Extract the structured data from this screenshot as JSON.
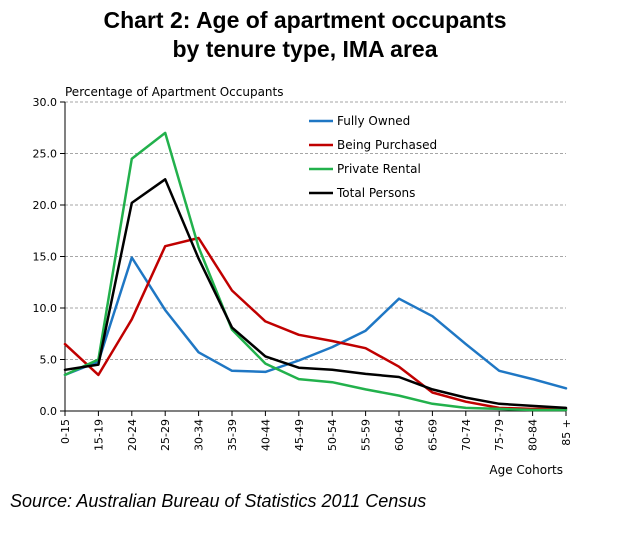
{
  "title_line1": "Chart 2: Age of apartment occupants",
  "title_line2": "by tenure type, IMA area",
  "source": "Source: Australian Bureau of Statistics 2011 Census",
  "chart_data": {
    "type": "line",
    "ylabel": "Percentage of Apartment Occupants",
    "xlabel": "Age Cohorts",
    "ylim": [
      0,
      30
    ],
    "yticks": [
      "0.0",
      "5.0",
      "10.0",
      "15.0",
      "20.0",
      "25.0",
      "30.0"
    ],
    "grid": true,
    "legend_position": "top-right",
    "categories": [
      "0-15",
      "15-19",
      "20-24",
      "25-29",
      "30-34",
      "35-39",
      "40-44",
      "45-49",
      "50-54",
      "55-59",
      "60-64",
      "65-69",
      "70-74",
      "75-79",
      "80-84",
      "85 +"
    ],
    "series": [
      {
        "name": "Fully Owned",
        "color": "#1f77c4",
        "values": [
          3.5,
          4.8,
          14.9,
          9.8,
          5.7,
          3.9,
          3.8,
          4.9,
          6.2,
          7.8,
          10.9,
          9.2,
          6.5,
          3.9,
          3.1,
          2.2
        ]
      },
      {
        "name": "Being Purchased",
        "color": "#c00000",
        "values": [
          6.5,
          3.5,
          8.9,
          16.0,
          16.8,
          11.7,
          8.7,
          7.4,
          6.8,
          6.1,
          4.3,
          1.8,
          0.9,
          0.3,
          0.2,
          0.2
        ]
      },
      {
        "name": "Private Rental",
        "color": "#22b14c",
        "values": [
          3.5,
          5.0,
          24.5,
          27.0,
          15.9,
          7.9,
          4.6,
          3.1,
          2.8,
          2.1,
          1.5,
          0.7,
          0.3,
          0.2,
          0.1,
          0.1
        ]
      },
      {
        "name": "Total Persons",
        "color": "#000000",
        "values": [
          4.0,
          4.5,
          20.2,
          22.5,
          14.8,
          8.1,
          5.3,
          4.2,
          4.0,
          3.6,
          3.3,
          2.1,
          1.3,
          0.7,
          0.5,
          0.3
        ]
      }
    ]
  }
}
